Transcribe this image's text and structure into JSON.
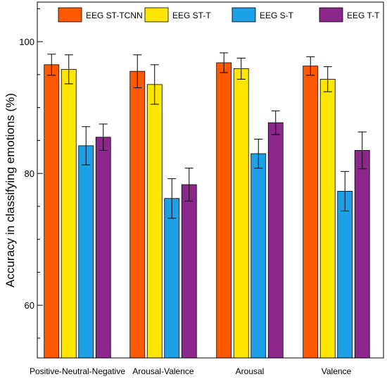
{
  "chart_data": {
    "type": "bar",
    "title": "",
    "xlabel": "",
    "ylabel": "Accuracy in classifying emotions (%)",
    "ylim": [
      52,
      106
    ],
    "yticks": [
      60,
      80,
      100
    ],
    "categories": [
      "Positive-Neutral-Negative",
      "Arousal-Valence",
      "Arousal",
      "Valence"
    ],
    "series": [
      {
        "name": "EEG ST-TCNN",
        "color": "#FF5A00",
        "values": [
          96.5,
          95.5,
          96.8,
          96.3
        ],
        "errors": [
          1.6,
          2.5,
          1.5,
          1.4
        ]
      },
      {
        "name": "EEG ST-T",
        "color": "#FFE600",
        "values": [
          95.8,
          93.5,
          95.9,
          94.3
        ],
        "errors": [
          2.2,
          3.0,
          1.6,
          1.9
        ]
      },
      {
        "name": "EEG S-T",
        "color": "#1EA0E6",
        "values": [
          84.2,
          76.2,
          83.0,
          77.3
        ],
        "errors": [
          2.9,
          3.0,
          2.2,
          3.0
        ]
      },
      {
        "name": "EEG T-T",
        "color": "#8C288C",
        "values": [
          85.5,
          78.3,
          87.7,
          83.5
        ],
        "errors": [
          2.0,
          2.5,
          1.8,
          2.8
        ]
      }
    ],
    "legend_position": "top",
    "grid": false
  }
}
